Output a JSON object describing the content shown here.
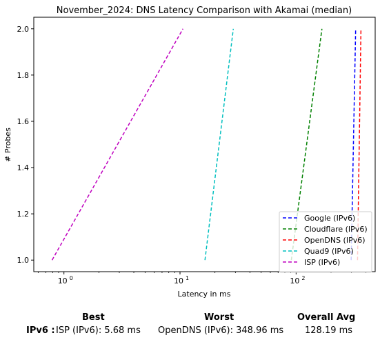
{
  "chart_data": {
    "type": "line",
    "title": "November_2024: DNS Latency Comparison with Akamai (median)",
    "xlabel": "Latency in ms",
    "ylabel": "# Probes",
    "xscale": "log",
    "xlim": [
      0.55,
      480
    ],
    "ylim": [
      0.95,
      2.05
    ],
    "x_ticks": [
      {
        "value": 1,
        "label": "10",
        "exp": "0"
      },
      {
        "value": 10,
        "label": "10",
        "exp": "1"
      },
      {
        "value": 100,
        "label": "10",
        "exp": "2"
      }
    ],
    "y_ticks": [
      {
        "value": 1.0,
        "label": "1.0"
      },
      {
        "value": 1.2,
        "label": "1.2"
      },
      {
        "value": 1.4,
        "label": "1.4"
      },
      {
        "value": 1.6,
        "label": "1.6"
      },
      {
        "value": 1.8,
        "label": "1.8"
      },
      {
        "value": 2.0,
        "label": "2.0"
      }
    ],
    "legend_position": "lower-right",
    "series": [
      {
        "name": "Google (IPv6)",
        "color": "#0000ff",
        "points": [
          [
            298,
            1.0
          ],
          [
            326,
            2.0
          ]
        ]
      },
      {
        "name": "Cloudflare (IPv6)",
        "color": "#008000",
        "points": [
          [
            91,
            1.0
          ],
          [
            167,
            2.0
          ]
        ]
      },
      {
        "name": "OpenDNS (IPv6)",
        "color": "#ff0000",
        "points": [
          [
            338,
            1.0
          ],
          [
            362,
            2.0
          ]
        ]
      },
      {
        "name": "Quad9 (IPv6)",
        "color": "#00bfbf",
        "points": [
          [
            16.4,
            1.0
          ],
          [
            28.8,
            2.0
          ]
        ]
      },
      {
        "name": "ISP (IPv6)",
        "color": "#bf00bf",
        "points": [
          [
            0.79,
            1.0
          ],
          [
            10.6,
            2.0
          ]
        ]
      }
    ]
  },
  "summary": {
    "headers": {
      "best": "Best",
      "worst": "Worst",
      "avg": "Overall Avg"
    },
    "row_label": "IPv6 :",
    "best": "ISP (IPv6): 5.68 ms",
    "worst": "OpenDNS (IPv6): 348.96 ms",
    "avg": "128.19 ms"
  }
}
